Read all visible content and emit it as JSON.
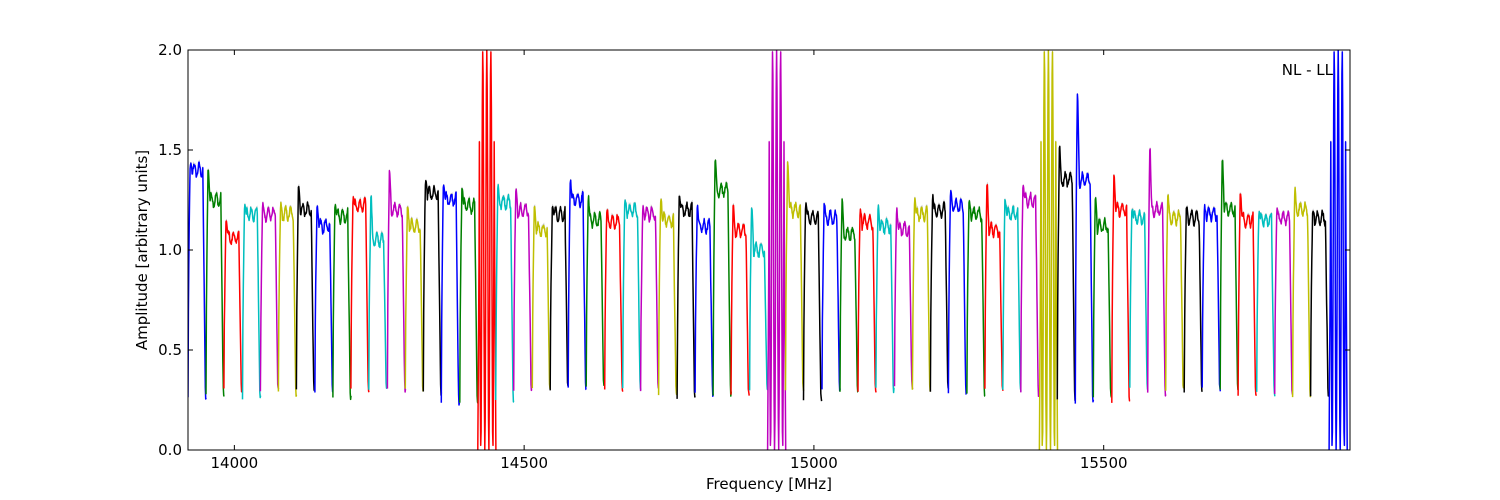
{
  "chart_data": {
    "type": "line",
    "title": "",
    "xlabel": "Frequency [MHz]",
    "ylabel": "Amplitude [arbitrary units]",
    "xlim": [
      13920,
      15925
    ],
    "ylim": [
      0.0,
      2.0
    ],
    "grid": false,
    "annotation": "NL - LL",
    "x_ticks": [
      14000,
      14500,
      15000,
      15500
    ],
    "x_tick_labels": [
      "14000",
      "14500",
      "15000",
      "15500"
    ],
    "y_ticks": [
      0.0,
      0.5,
      1.0,
      1.5,
      2.0
    ],
    "y_tick_labels": [
      "0.0",
      "0.5",
      "1.0",
      "1.5",
      "2.0"
    ],
    "colors": [
      "#0000ff",
      "#008000",
      "#ff0000",
      "#00bfbf",
      "#bf00bf",
      "#bfbf00",
      "#000000"
    ],
    "envelope_color": "#bfbfbf",
    "band_width_mhz": 31.25,
    "band_start_mhz": 13920,
    "bands": [
      {
        "start": 13920,
        "peak": 1.44,
        "level": 1.4,
        "min": 0.26
      },
      {
        "start": 13951,
        "peak": 1.43,
        "level": 1.25,
        "min": 0.27
      },
      {
        "start": 13982,
        "peak": 1.17,
        "level": 1.06,
        "min": 0.3
      },
      {
        "start": 14014,
        "peak": 1.24,
        "level": 1.18,
        "min": 0.26
      },
      {
        "start": 14045,
        "peak": 1.24,
        "level": 1.18,
        "min": 0.3
      },
      {
        "start": 14076,
        "peak": 1.24,
        "level": 1.18,
        "min": 0.28
      },
      {
        "start": 14107,
        "peak": 1.34,
        "level": 1.2,
        "min": 0.3
      },
      {
        "start": 14139,
        "peak": 1.23,
        "level": 1.12,
        "min": 0.3
      },
      {
        "start": 14170,
        "peak": 1.25,
        "level": 1.17,
        "min": 0.26
      },
      {
        "start": 14201,
        "peak": 1.27,
        "level": 1.22,
        "min": 0.3
      },
      {
        "start": 14232,
        "peak": 1.3,
        "level": 1.05,
        "min": 0.31
      },
      {
        "start": 14264,
        "peak": 1.43,
        "level": 1.2,
        "min": 0.3
      },
      {
        "start": 14295,
        "peak": 1.24,
        "level": 1.12,
        "min": 0.3
      },
      {
        "start": 14326,
        "peak": 1.36,
        "level": 1.28,
        "min": 0.28
      },
      {
        "start": 14357,
        "peak": 1.35,
        "level": 1.25,
        "min": 0.23
      },
      {
        "start": 14389,
        "peak": 1.33,
        "level": 1.22,
        "min": 0.24
      },
      {
        "start": 14420,
        "peak": 2.0,
        "level": 1.1,
        "min": 0.0,
        "spike": true
      },
      {
        "start": 14451,
        "peak": 1.34,
        "level": 1.24,
        "min": 0.25
      },
      {
        "start": 14482,
        "peak": 1.32,
        "level": 1.2,
        "min": 0.3
      },
      {
        "start": 14514,
        "peak": 1.25,
        "level": 1.1,
        "min": 0.3
      },
      {
        "start": 14545,
        "peak": 1.23,
        "level": 1.18,
        "min": 0.31
      },
      {
        "start": 14576,
        "peak": 1.36,
        "level": 1.25,
        "min": 0.3
      },
      {
        "start": 14607,
        "peak": 1.28,
        "level": 1.15,
        "min": 0.32
      },
      {
        "start": 14639,
        "peak": 1.22,
        "level": 1.14,
        "min": 0.3
      },
      {
        "start": 14670,
        "peak": 1.27,
        "level": 1.2,
        "min": 0.3
      },
      {
        "start": 14701,
        "peak": 1.22,
        "level": 1.18,
        "min": 0.3
      },
      {
        "start": 14732,
        "peak": 1.28,
        "level": 1.15,
        "min": 0.28
      },
      {
        "start": 14764,
        "peak": 1.29,
        "level": 1.2,
        "min": 0.26
      },
      {
        "start": 14795,
        "peak": 1.23,
        "level": 1.12,
        "min": 0.28
      },
      {
        "start": 14826,
        "peak": 1.48,
        "level": 1.3,
        "min": 0.28
      },
      {
        "start": 14857,
        "peak": 1.24,
        "level": 1.1,
        "min": 0.28
      },
      {
        "start": 14889,
        "peak": 1.25,
        "level": 1.0,
        "min": 0.3
      },
      {
        "start": 14920,
        "peak": 2.0,
        "level": 1.1,
        "min": 0.0,
        "spike": true
      },
      {
        "start": 14951,
        "peak": 1.47,
        "level": 1.2,
        "min": 0.3
      },
      {
        "start": 14982,
        "peak": 1.24,
        "level": 1.16,
        "min": 0.25
      },
      {
        "start": 15014,
        "peak": 1.25,
        "level": 1.16,
        "min": 0.3
      },
      {
        "start": 15045,
        "peak": 1.28,
        "level": 1.08,
        "min": 0.3
      },
      {
        "start": 15076,
        "peak": 1.21,
        "level": 1.14,
        "min": 0.3
      },
      {
        "start": 15107,
        "peak": 1.23,
        "level": 1.12,
        "min": 0.3
      },
      {
        "start": 15139,
        "peak": 1.22,
        "level": 1.1,
        "min": 0.31
      },
      {
        "start": 15170,
        "peak": 1.27,
        "level": 1.18,
        "min": 0.29
      },
      {
        "start": 15201,
        "peak": 1.28,
        "level": 1.2,
        "min": 0.3
      },
      {
        "start": 15232,
        "peak": 1.31,
        "level": 1.22,
        "min": 0.28
      },
      {
        "start": 15264,
        "peak": 1.27,
        "level": 1.18,
        "min": 0.28
      },
      {
        "start": 15295,
        "peak": 1.36,
        "level": 1.1,
        "min": 0.3
      },
      {
        "start": 15326,
        "peak": 1.27,
        "level": 1.18,
        "min": 0.3
      },
      {
        "start": 15357,
        "peak": 1.34,
        "level": 1.25,
        "min": 0.28
      },
      {
        "start": 15389,
        "peak": 2.0,
        "level": 1.2,
        "min": 0.0,
        "spike": true
      },
      {
        "start": 15420,
        "peak": 1.54,
        "level": 1.35,
        "min": 0.25
      },
      {
        "start": 15451,
        "peak": 1.83,
        "level": 1.35,
        "min": 0.24
      },
      {
        "start": 15482,
        "peak": 1.28,
        "level": 1.12,
        "min": 0.27
      },
      {
        "start": 15514,
        "peak": 1.4,
        "level": 1.2,
        "min": 0.24
      },
      {
        "start": 15545,
        "peak": 1.21,
        "level": 1.16,
        "min": 0.3
      },
      {
        "start": 15576,
        "peak": 1.55,
        "level": 1.2,
        "min": 0.28
      },
      {
        "start": 15607,
        "peak": 1.29,
        "level": 1.16,
        "min": 0.3
      },
      {
        "start": 15639,
        "peak": 1.23,
        "level": 1.16,
        "min": 0.3
      },
      {
        "start": 15670,
        "peak": 1.22,
        "level": 1.18,
        "min": 0.3
      },
      {
        "start": 15701,
        "peak": 1.49,
        "level": 1.2,
        "min": 0.3
      },
      {
        "start": 15732,
        "peak": 1.31,
        "level": 1.15,
        "min": 0.28
      },
      {
        "start": 15764,
        "peak": 1.2,
        "level": 1.15,
        "min": 0.28
      },
      {
        "start": 15795,
        "peak": 1.21,
        "level": 1.16,
        "min": 0.27
      },
      {
        "start": 15826,
        "peak": 1.32,
        "level": 1.2,
        "min": 0.26
      },
      {
        "start": 15857,
        "peak": 1.21,
        "level": 1.16,
        "min": 0.28
      },
      {
        "start": 15889,
        "peak": 2.0,
        "level": 1.2,
        "min": 0.0,
        "spike": true
      }
    ]
  }
}
